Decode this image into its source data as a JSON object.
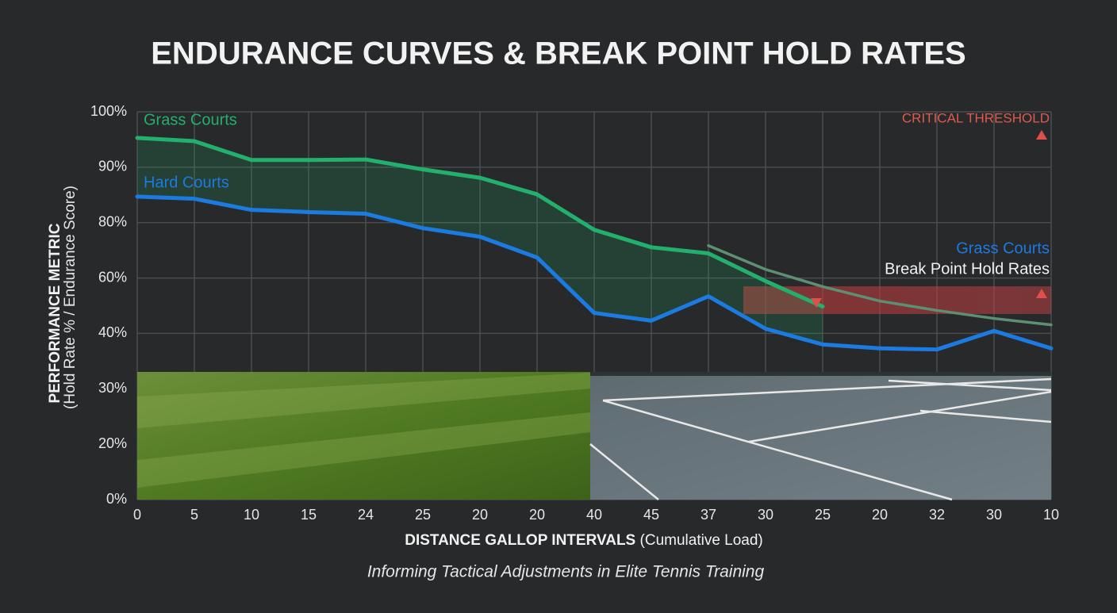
{
  "chart_data": {
    "type": "line",
    "title": "ENDURANCE CURVES & BREAK POINT HOLD RATES",
    "subtitle": "Informing Tactical Adjustments in Elite Tennis Training",
    "y_label": "PERFORMANCE METRIC",
    "y_label_note": "(Hold Rate % / Endurance Score)",
    "x_label": "DISTANCE GALLOP INTERVALS",
    "x_label_note": "(Cumulative Load)",
    "categories": [
      "0",
      "5",
      "10",
      "15",
      "24",
      "25",
      "20",
      "20",
      "40",
      "45",
      "37",
      "30",
      "25",
      "20",
      "32",
      "30",
      "10"
    ],
    "ylim": [
      0,
      100
    ],
    "yticks": [
      {
        "value": 0,
        "label": "0%"
      },
      {
        "value": 20,
        "label": "20%"
      },
      {
        "value": 30,
        "label": "30%"
      },
      {
        "value": 40,
        "label": "40%"
      },
      {
        "value": 60,
        "label": "60%"
      },
      {
        "value": 80,
        "label": "80%"
      },
      {
        "value": 90,
        "label": "90%"
      },
      {
        "value": 100,
        "label": "100%"
      }
    ],
    "grid": true,
    "series": [
      {
        "name": "Grass Courts",
        "color": "#22b06c",
        "values": [
          95.3,
          94.7,
          91.3,
          91.3,
          91.4,
          89.6,
          88.1,
          85.1,
          77.4,
          71.1,
          68.9,
          58.9,
          49.7,
          null,
          null,
          null,
          null
        ]
      },
      {
        "name": "Hard Courts",
        "color": "#1b7be0",
        "values": [
          84.7,
          84.3,
          82.3,
          81.9,
          81.6,
          78.0,
          74.9,
          67.4,
          47.4,
          44.6,
          53.4,
          41.7,
          38.0,
          37.3,
          37.1,
          40.9,
          37.3
        ]
      },
      {
        "color": "#5e8f72",
        "values": [
          null,
          null,
          null,
          null,
          null,
          null,
          null,
          null,
          null,
          null,
          71.7,
          63.1,
          56.9,
          51.7,
          48.3,
          45.4,
          43.1
        ]
      }
    ],
    "critical_band": [
      47,
      57
    ],
    "annotations": [
      "CRITICAL THRESHOLD",
      "Grass Courts",
      "Break Point Hold Rates"
    ]
  }
}
